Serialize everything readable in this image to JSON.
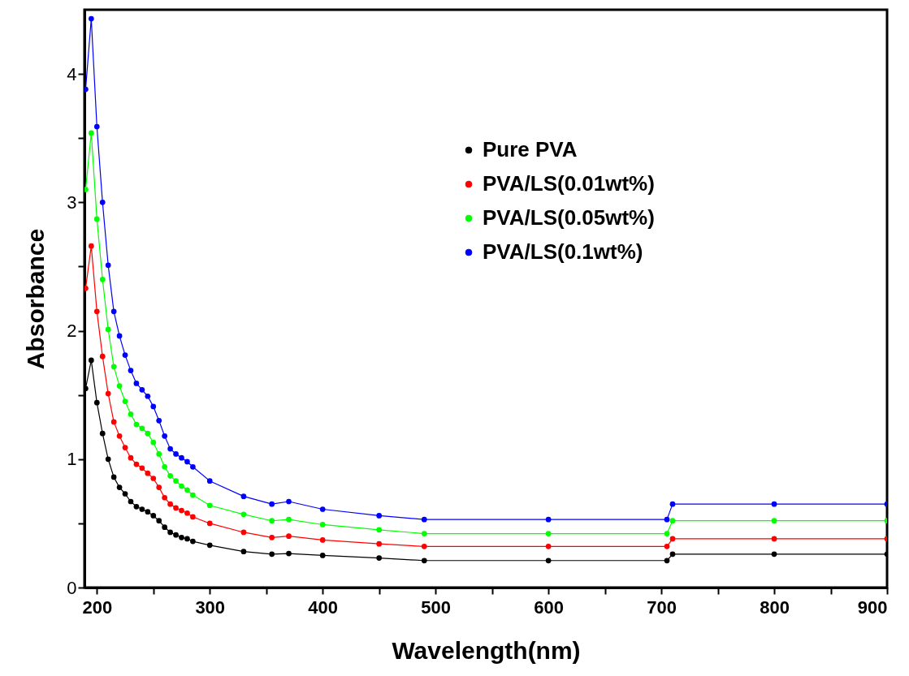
{
  "chart_data": {
    "type": "line",
    "xlabel": "Wavelength(nm)",
    "ylabel": "Absorbance",
    "x": [
      190,
      195,
      200,
      205,
      210,
      215,
      220,
      225,
      230,
      235,
      240,
      245,
      250,
      255,
      260,
      265,
      270,
      275,
      280,
      285,
      300,
      330,
      355,
      370,
      400,
      450,
      490,
      600,
      705,
      710,
      800,
      900
    ],
    "series": [
      {
        "name": "Pure PVA",
        "color": "#000000",
        "values": [
          1.55,
          1.77,
          1.44,
          1.2,
          1.0,
          0.86,
          0.78,
          0.73,
          0.67,
          0.63,
          0.61,
          0.59,
          0.56,
          0.52,
          0.47,
          0.43,
          0.41,
          0.39,
          0.38,
          0.36,
          0.33,
          0.28,
          0.26,
          0.265,
          0.25,
          0.23,
          0.21,
          0.21,
          0.21,
          0.26,
          0.26,
          0.26
        ]
      },
      {
        "name": "PVA/LS(0.01wt%)",
        "color": "#ff0000",
        "values": [
          2.33,
          2.66,
          2.15,
          1.8,
          1.51,
          1.29,
          1.18,
          1.09,
          1.01,
          0.96,
          0.93,
          0.89,
          0.85,
          0.78,
          0.7,
          0.65,
          0.62,
          0.6,
          0.58,
          0.55,
          0.5,
          0.43,
          0.39,
          0.4,
          0.37,
          0.34,
          0.32,
          0.32,
          0.32,
          0.38,
          0.38,
          0.38
        ]
      },
      {
        "name": "PVA/LS(0.05wt%)",
        "color": "#00ff00",
        "values": [
          3.1,
          3.54,
          2.87,
          2.4,
          2.01,
          1.72,
          1.57,
          1.45,
          1.35,
          1.27,
          1.24,
          1.2,
          1.13,
          1.04,
          0.94,
          0.87,
          0.83,
          0.79,
          0.76,
          0.72,
          0.64,
          0.57,
          0.52,
          0.53,
          0.49,
          0.45,
          0.42,
          0.42,
          0.42,
          0.52,
          0.52,
          0.52
        ]
      },
      {
        "name": "PVA/LS(0.1wt%)",
        "color": "#0000ff",
        "values": [
          3.88,
          4.43,
          3.59,
          3.0,
          2.51,
          2.15,
          1.96,
          1.81,
          1.69,
          1.59,
          1.54,
          1.49,
          1.41,
          1.3,
          1.18,
          1.08,
          1.04,
          1.01,
          0.98,
          0.94,
          0.83,
          0.71,
          0.65,
          0.67,
          0.61,
          0.56,
          0.53,
          0.53,
          0.53,
          0.65,
          0.65,
          0.65
        ]
      }
    ],
    "xlim": [
      189,
      900
    ],
    "xticks": [
      200,
      {
        "value": 250,
        "label": null
      },
      300,
      {
        "value": 350,
        "label": null
      },
      400,
      {
        "value": 450,
        "label": null
      },
      500,
      {
        "value": 550,
        "label": null
      },
      600,
      {
        "value": 650,
        "label": null
      },
      700,
      {
        "value": 750,
        "label": null
      },
      800,
      {
        "value": 850,
        "label": null
      },
      900
    ],
    "ylim": [
      0,
      4.5
    ],
    "yticks": [
      0,
      {
        "value": 0.5,
        "label": null
      },
      1,
      {
        "value": 1.5,
        "label": null
      },
      2,
      {
        "value": 2.5,
        "label": null
      },
      3,
      {
        "value": 3.5,
        "label": null
      },
      4
    ],
    "grid": false,
    "legend": "top right",
    "marker": "circle",
    "line_style": "solid"
  }
}
